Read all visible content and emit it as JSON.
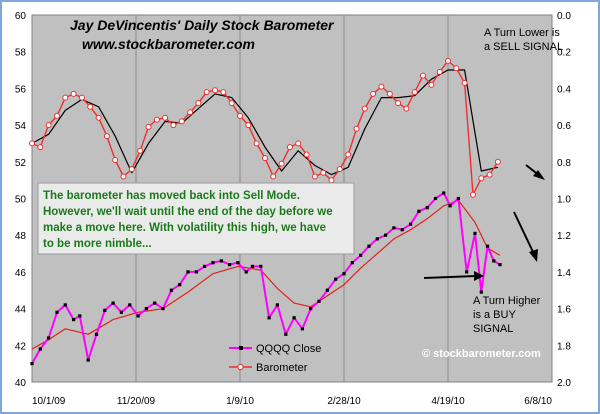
{
  "chart_data": {
    "type": "line",
    "title": "Jay DeVincentis' Daily Stock Barometer",
    "subtitle": "www.stockbarometer.com",
    "x_tick_labels": [
      "10/1/09",
      "11/20/09",
      "1/9/10",
      "2/28/10",
      "4/19/10",
      "6/8/10"
    ],
    "y_left_ticks": [
      "40",
      "42",
      "44",
      "46",
      "48",
      "50",
      "52",
      "54",
      "56",
      "58",
      "60"
    ],
    "y_right_ticks": [
      "0.0",
      "0.2",
      "0.4",
      "0.6",
      "0.8",
      "1.0",
      "1.2",
      "1.4",
      "1.6",
      "1.8",
      "2.0"
    ],
    "ylim_left": [
      40,
      60
    ],
    "ylim_right": [
      2.0,
      0.0
    ],
    "x_range": [
      "2009-10-01",
      "2010-06-08"
    ],
    "grid": true,
    "series": [
      {
        "name": "QQQQ Close",
        "axis": "left",
        "color": "#ff00ff",
        "x": [
          "2009-10-01",
          "2009-10-05",
          "2009-10-09",
          "2009-10-13",
          "2009-10-17",
          "2009-10-21",
          "2009-10-24",
          "2009-10-28",
          "2009-11-01",
          "2009-11-05",
          "2009-11-09",
          "2009-11-13",
          "2009-11-17",
          "2009-11-21",
          "2009-11-25",
          "2009-11-29",
          "2009-12-03",
          "2009-12-07",
          "2009-12-11",
          "2009-12-15",
          "2009-12-19",
          "2009-12-23",
          "2009-12-27",
          "2009-12-31",
          "2010-01-04",
          "2010-01-08",
          "2010-01-12",
          "2010-01-15",
          "2010-01-19",
          "2010-01-23",
          "2010-01-27",
          "2010-01-31",
          "2010-02-04",
          "2010-02-08",
          "2010-02-12",
          "2010-02-16",
          "2010-02-20",
          "2010-02-24",
          "2010-02-28",
          "2010-03-04",
          "2010-03-08",
          "2010-03-12",
          "2010-03-16",
          "2010-03-20",
          "2010-03-24",
          "2010-03-28",
          "2010-04-01",
          "2010-04-05",
          "2010-04-09",
          "2010-04-13",
          "2010-04-17",
          "2010-04-20",
          "2010-04-24",
          "2010-04-28",
          "2010-05-02",
          "2010-05-05",
          "2010-05-08",
          "2010-05-11",
          "2010-05-14"
        ],
        "values": [
          41.0,
          41.8,
          42.4,
          43.8,
          44.2,
          43.4,
          43.6,
          41.2,
          42.6,
          43.9,
          44.3,
          43.8,
          44.2,
          43.6,
          44.0,
          44.3,
          44.0,
          45.0,
          45.3,
          46.0,
          46.0,
          46.3,
          46.5,
          46.6,
          46.4,
          46.5,
          46.0,
          46.3,
          46.3,
          43.5,
          44.2,
          42.6,
          43.5,
          42.9,
          44.0,
          44.4,
          45.0,
          45.6,
          45.9,
          46.5,
          46.9,
          47.4,
          47.8,
          48.0,
          48.4,
          48.3,
          48.6,
          49.3,
          49.5,
          50.0,
          50.3,
          49.6,
          50.0,
          46.0,
          48.1,
          44.9,
          47.4,
          46.6,
          46.4
        ]
      },
      {
        "name": "",
        "axis": "left",
        "color": "#e0201c",
        "x": [
          "2009-10-01",
          "2009-10-09",
          "2009-10-17",
          "2009-10-28",
          "2009-11-09",
          "2009-11-21",
          "2009-12-03",
          "2009-12-15",
          "2009-12-27",
          "2010-01-08",
          "2010-01-19",
          "2010-01-27",
          "2010-02-04",
          "2010-02-12",
          "2010-02-20",
          "2010-02-28",
          "2010-03-08",
          "2010-03-16",
          "2010-03-24",
          "2010-04-01",
          "2010-04-09",
          "2010-04-17",
          "2010-04-24",
          "2010-05-02",
          "2010-05-08",
          "2010-05-14"
        ],
        "values": [
          41.8,
          42.3,
          42.9,
          42.6,
          43.4,
          43.8,
          44.0,
          44.9,
          45.9,
          46.3,
          46.1,
          45.1,
          44.3,
          44.1,
          44.7,
          45.3,
          46.2,
          47.0,
          47.8,
          48.3,
          48.9,
          49.6,
          49.9,
          48.7,
          47.3,
          46.9
        ]
      },
      {
        "name": "Barometer",
        "axis": "right",
        "color": "#ee3030",
        "x": [
          "2009-10-01",
          "2009-10-05",
          "2009-10-09",
          "2009-10-13",
          "2009-10-17",
          "2009-10-21",
          "2009-10-25",
          "2009-10-29",
          "2009-11-02",
          "2009-11-06",
          "2009-11-10",
          "2009-11-14",
          "2009-11-18",
          "2009-11-22",
          "2009-11-26",
          "2009-11-30",
          "2009-12-04",
          "2009-12-08",
          "2009-12-12",
          "2009-12-16",
          "2009-12-20",
          "2009-12-24",
          "2009-12-28",
          "2010-01-01",
          "2010-01-05",
          "2010-01-09",
          "2010-01-13",
          "2010-01-17",
          "2010-01-21",
          "2010-01-25",
          "2010-01-29",
          "2010-02-02",
          "2010-02-06",
          "2010-02-10",
          "2010-02-14",
          "2010-02-18",
          "2010-02-22",
          "2010-02-26",
          "2010-03-02",
          "2010-03-06",
          "2010-03-10",
          "2010-03-14",
          "2010-03-18",
          "2010-03-22",
          "2010-03-26",
          "2010-03-30",
          "2010-04-03",
          "2010-04-07",
          "2010-04-11",
          "2010-04-15",
          "2010-04-19",
          "2010-04-23",
          "2010-04-27",
          "2010-05-01",
          "2010-05-05",
          "2010-05-09",
          "2010-05-13"
        ],
        "values": [
          0.7,
          0.72,
          0.6,
          0.55,
          0.45,
          0.43,
          0.45,
          0.5,
          0.56,
          0.66,
          0.79,
          0.88,
          0.84,
          0.74,
          0.61,
          0.57,
          0.56,
          0.6,
          0.58,
          0.53,
          0.48,
          0.42,
          0.41,
          0.42,
          0.48,
          0.55,
          0.6,
          0.7,
          0.78,
          0.88,
          0.81,
          0.72,
          0.7,
          0.76,
          0.88,
          0.86,
          0.9,
          0.84,
          0.76,
          0.62,
          0.51,
          0.43,
          0.39,
          0.43,
          0.48,
          0.51,
          0.42,
          0.33,
          0.38,
          0.31,
          0.25,
          0.29,
          0.37,
          0.98,
          0.89,
          0.87,
          0.8
        ]
      },
      {
        "name": "",
        "axis": "right",
        "color": "#000000",
        "x": [
          "2009-10-01",
          "2009-10-09",
          "2009-10-17",
          "2009-10-25",
          "2009-11-02",
          "2009-11-10",
          "2009-11-18",
          "2009-11-26",
          "2009-12-04",
          "2009-12-12",
          "2009-12-20",
          "2009-12-28",
          "2010-01-05",
          "2010-01-13",
          "2010-01-21",
          "2010-01-29",
          "2010-02-06",
          "2010-02-14",
          "2010-02-22",
          "2010-03-02",
          "2010-03-10",
          "2010-03-18",
          "2010-03-26",
          "2010-04-03",
          "2010-04-11",
          "2010-04-19",
          "2010-04-27",
          "2010-05-05",
          "2010-05-13"
        ],
        "values": [
          0.7,
          0.65,
          0.52,
          0.46,
          0.5,
          0.66,
          0.86,
          0.7,
          0.58,
          0.59,
          0.51,
          0.43,
          0.45,
          0.56,
          0.72,
          0.85,
          0.74,
          0.82,
          0.87,
          0.83,
          0.62,
          0.45,
          0.45,
          0.44,
          0.35,
          0.3,
          0.3,
          0.85,
          0.83
        ]
      }
    ],
    "annotations": {
      "note": [
        "The barometer has moved back into Sell Mode.",
        "However, we'll wait until the end of the day before we",
        "make a move here.  With volatility this high, we have",
        "to be more nimble..."
      ],
      "sell": [
        "A Turn Lower is",
        "a SELL  SIGNAL"
      ],
      "buy": [
        "A Turn Higher",
        "is a BUY",
        "SIGNAL"
      ],
      "copyright": "© stockbarometer.com"
    },
    "legend": {
      "position": "bottom-center",
      "items": [
        "QQQQ Close",
        "Barometer"
      ]
    },
    "colors": {
      "plot_background": "#c0c0c0",
      "note_background": "#eaeaea",
      "frame": "#7fa7d9",
      "note_text": "#1a7a1a"
    }
  }
}
